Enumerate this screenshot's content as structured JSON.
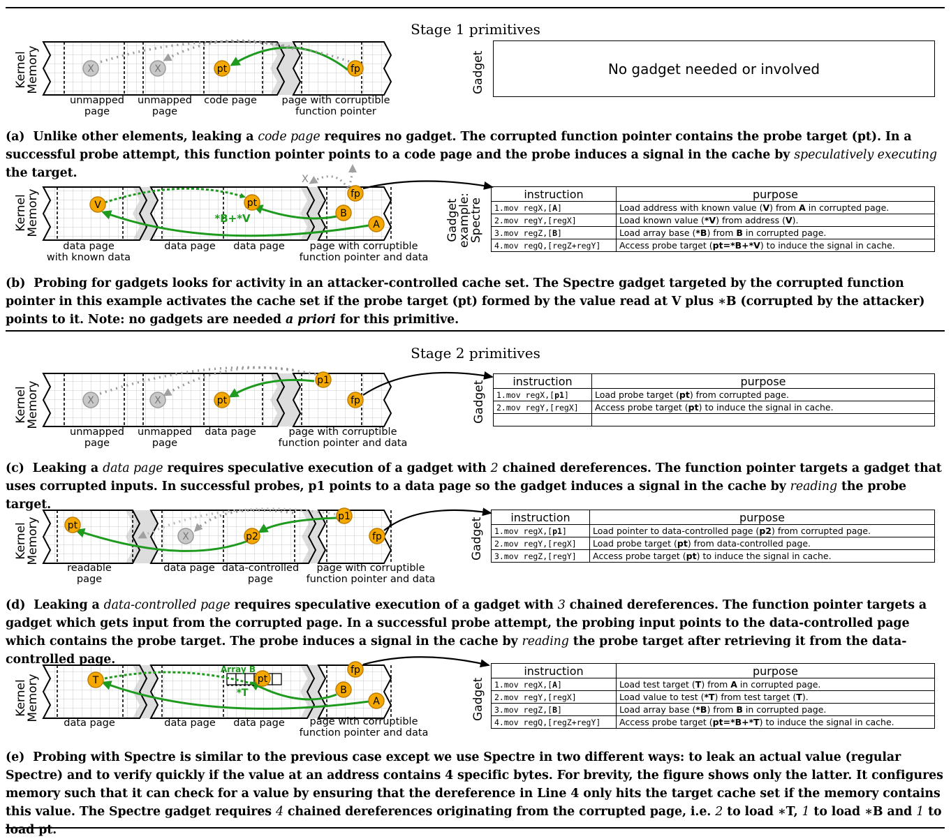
{
  "stage1": {
    "title": "Stage 1 primitives"
  },
  "stage2": {
    "title": "Stage 2 primitives"
  },
  "mem_label": [
    "Kernel",
    "Memory"
  ],
  "gadget_label": "Gadget",
  "gadget_example_label": [
    "Gadget",
    "example:",
    "Spectre"
  ],
  "table_headers": {
    "instruction": "instruction",
    "purpose": "purpose"
  },
  "panel_a": {
    "pages": [
      "unmapped page",
      "unmapped page",
      "code page",
      "page with corruptible function pointer"
    ],
    "nodes": [
      "X",
      "X",
      "pt",
      "fp"
    ],
    "gadget_text": "No gadget needed or involved",
    "caption": "(a) Unlike other elements, leaking a code page requires no gadget. The corrupted function pointer contains the probe target (pt). In a successful probe attempt, this function pointer points to a code page and the probe induces a signal in the cache by speculatively executing the target."
  },
  "panel_b": {
    "pages": [
      "data page with known data",
      "data page",
      "data page",
      "page with corruptible function pointer and data"
    ],
    "nodes": [
      "V",
      "pt",
      "B",
      "A",
      "fp",
      "X"
    ],
    "arrow_label": "*B+*V",
    "rows": [
      {
        "instr": "1.mov regX,[A]",
        "purpose": "Load address with known value (V) from A in corrupted page."
      },
      {
        "instr": "2.mov regY,[regX]",
        "purpose": "Load known value (*V) from address (V)."
      },
      {
        "instr": "3.mov regZ,[B]",
        "purpose": "Load array base (*B) from B in corrupted page."
      },
      {
        "instr": "4.mov regQ,[regZ+regY]",
        "purpose": "Access probe target (pt=*B+*V) to induce the signal in cache."
      }
    ],
    "caption": "(b) Probing for gadgets looks for activity in an attacker-controlled cache set. The Spectre gadget targeted by the corrupted function pointer in this example activates the cache set if the probe target (pt) formed by the value read at V plus *B (corrupted by the attacker) points to it. Note: no gadgets are needed a priori for this primitive."
  },
  "panel_c": {
    "pages": [
      "unmapped page",
      "unmapped page",
      "data page",
      "page with corruptible function pointer and data"
    ],
    "nodes": [
      "X",
      "X",
      "pt",
      "p1",
      "fp"
    ],
    "rows": [
      {
        "instr": "1.mov regX,[p1]",
        "purpose": "Load probe target (pt) from corrupted page."
      },
      {
        "instr": "2.mov regY,[regX]",
        "purpose": "Access probe target (pt) to induce the signal in cache."
      },
      {
        "instr": "",
        "purpose": ""
      }
    ],
    "caption": "(c) Leaking a data page requires speculative execution of a gadget with 2 chained dereferences. The function pointer targets a gadget that uses corrupted inputs. In successful probes, p1 points to a data page so the gadget induces a signal in the cache by reading the probe target."
  },
  "panel_d": {
    "pages": [
      "readable page",
      "data page",
      "data-controlled page",
      "page with corruptible function pointer and data"
    ],
    "nodes": [
      "pt",
      "X",
      "p2",
      "p1",
      "fp"
    ],
    "rows": [
      {
        "instr": "1.mov regX,[p1]",
        "purpose": "Load pointer to data-controlled page (p2) from corrupted page."
      },
      {
        "instr": "2.mov regY,[regX]",
        "purpose": "Load probe target (pt) from data-controlled page."
      },
      {
        "instr": "3.mov regZ,[regY]",
        "purpose": "Access probe target (pt) to induce the signal in cache."
      }
    ],
    "caption": "(d) Leaking a data-controlled page requires speculative execution of a gadget with 3 chained dereferences. The function pointer targets a gadget which gets input from the corrupted page. In a successful probe attempt, the probing input points to the data-controlled page which contains the probe target. The probe induces a signal in the cache by reading the probe target after retrieving it from the data-controlled page."
  },
  "panel_e": {
    "pages": [
      "data page",
      "data page",
      "data page",
      "page with corruptible function pointer and data"
    ],
    "nodes": [
      "T",
      "pt",
      "B",
      "A",
      "fp"
    ],
    "array_label": "Array B",
    "arrow_label": "*T",
    "rows": [
      {
        "instr": "1.mov regX,[A]",
        "purpose": "Load test target (T) from A in corrupted page."
      },
      {
        "instr": "2.mov regY,[regX]",
        "purpose": "Load value to test (*T) from test target (T)."
      },
      {
        "instr": "3.mov regZ,[B]",
        "purpose": "Load array base (*B) from B in corrupted page."
      },
      {
        "instr": "4.mov regQ,[regZ+regY]",
        "purpose": "Access probe target (pt=*B+*T) to induce the signal in cache."
      }
    ],
    "caption": "(e) Probing with Spectre is similar to the previous case except we use Spectre in two different ways: to leak an actual value (regular Spectre) and to verify quickly if the value at an address contains 4 specific bytes. For brevity, the figure shows only the latter. It configures memory such that it can check for a value by ensuring that the dereference in Line 4 only hits the target cache set if the memory contains this value. The Spectre gadget requires 4 chained dereferences originating from the corrupted page, i.e. 2 to load *T, 1 to load *B and 1 to load pt."
  }
}
